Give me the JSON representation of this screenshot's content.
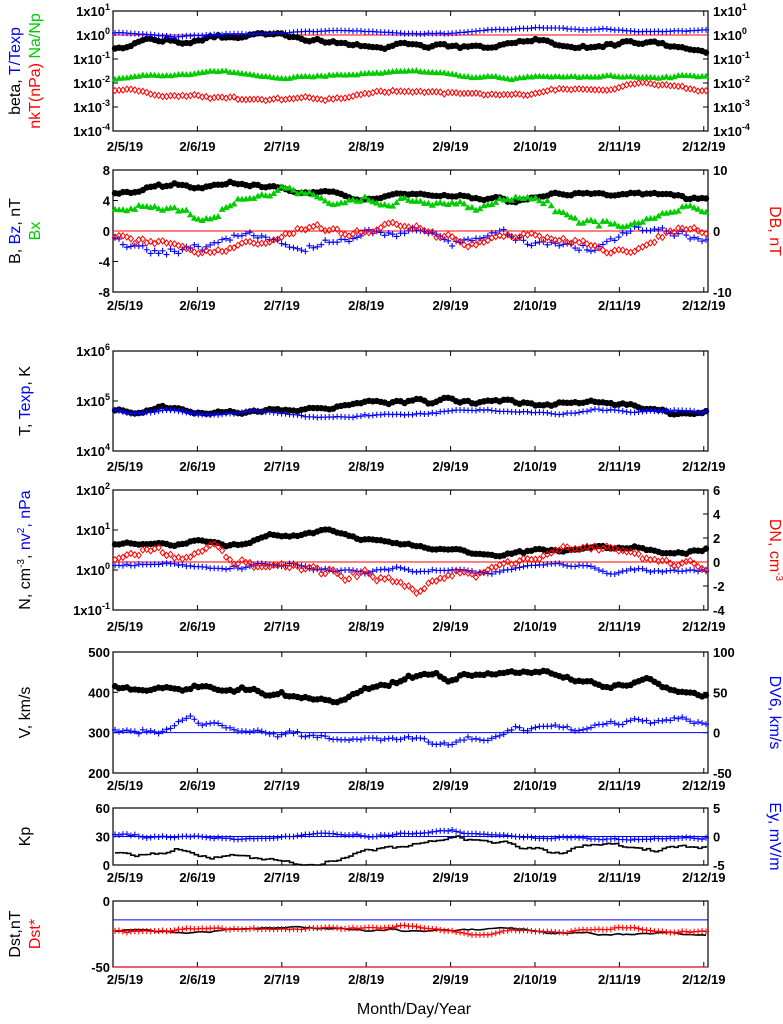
{
  "chart_data": [
    {
      "panel": 1,
      "type": "scatter",
      "yscale": "log",
      "ylim": [
        0.0001,
        10
      ],
      "ylabel_left": [
        {
          "text": "beta, ",
          "color": "#000000"
        },
        {
          "text": "T/Texp",
          "color": "#0000ff"
        }
      ],
      "ylabel_left2": [
        {
          "text": "nkT(nPa)",
          "color": "#ff0000"
        },
        {
          "text": " Na/Np",
          "color": "#00cc00"
        }
      ],
      "left_ticks": [
        "1x10^-4",
        "1x10^-3",
        "1x10^-2",
        "1x10^-1",
        "1x10^0",
        "1x10^1"
      ],
      "right_ticks": [
        "1x10^-4",
        "1x10^-3",
        "1x10^-2",
        "1x10^-1",
        "1x10^0",
        "1x10^1"
      ],
      "reference_line": {
        "y": 1,
        "color": "#ff0000"
      },
      "series": [
        {
          "name": "beta",
          "color": "#000000",
          "marker": "dot",
          "mean": 0.35,
          "spread": 0.35
        },
        {
          "name": "T/Texp",
          "color": "#0000ff",
          "marker": "plus",
          "mean": 1.2,
          "spread": 0.12
        },
        {
          "name": "nkT(nPa)",
          "color": "#ff0000",
          "marker": "diamond",
          "mean": 0.004,
          "spread": 0.25
        },
        {
          "name": "Na/Np",
          "color": "#00cc00",
          "marker": "triangle",
          "mean": 0.015,
          "spread": 0.15
        }
      ]
    },
    {
      "panel": 2,
      "type": "scatter",
      "ylim": [
        -8,
        8
      ],
      "ylim_right": [
        -10,
        10
      ],
      "ylabel_left": [
        {
          "text": "B, ",
          "color": "#000000"
        },
        {
          "text": "Bz",
          "color": "#0000ff"
        },
        {
          "text": ", nT",
          "color": "#000000"
        }
      ],
      "ylabel_left2": [
        {
          "text": "Bx",
          "color": "#00cc00"
        }
      ],
      "ylabel_right": [
        {
          "text": "DB, nT",
          "color": "#ff0000"
        }
      ],
      "left_ticks": [
        "-8",
        "-4",
        "0",
        "4",
        "8"
      ],
      "right_ticks": [
        "-10",
        "0",
        "10"
      ],
      "reference_line": {
        "y": 0,
        "color": "#ff0000"
      },
      "series": [
        {
          "name": "B",
          "color": "#000000",
          "marker": "dot"
        },
        {
          "name": "Bz",
          "color": "#0000ff",
          "marker": "plus"
        },
        {
          "name": "Bx",
          "color": "#00cc00",
          "marker": "triangle"
        },
        {
          "name": "DB",
          "color": "#ff0000",
          "marker": "diamond"
        }
      ]
    },
    {
      "panel": 3,
      "type": "scatter",
      "yscale": "log",
      "ylim": [
        10000,
        1000000
      ],
      "ylabel_left": [
        {
          "text": "T, ",
          "color": "#000000"
        },
        {
          "text": "Texp",
          "color": "#0000ff"
        },
        {
          "text": ", K",
          "color": "#000000"
        }
      ],
      "left_ticks": [
        "1x10^4",
        "1x10^5",
        "1x10^6"
      ],
      "series": [
        {
          "name": "T",
          "color": "#000000",
          "marker": "dot"
        },
        {
          "name": "Texp",
          "color": "#0000ff",
          "marker": "plus"
        }
      ]
    },
    {
      "panel": 4,
      "type": "scatter",
      "yscale": "log",
      "ylim": [
        0.1,
        100
      ],
      "ylim_right": [
        -4,
        6
      ],
      "ylabel_left": [
        {
          "text": "N, cm^-3, ",
          "color": "#000000"
        },
        {
          "text": "nv^2, nPa",
          "color": "#0000ff"
        }
      ],
      "ylabel_right": [
        {
          "text": "DN, cm^-3",
          "color": "#ff0000"
        }
      ],
      "left_ticks": [
        "1x10^-1",
        "1x10^0",
        "1x10^1",
        "1x10^2"
      ],
      "right_ticks": [
        "-4",
        "-2",
        "0",
        "2",
        "4",
        "6"
      ],
      "reference_line": {
        "y_right": 0,
        "color": "#ff0000"
      },
      "series": [
        {
          "name": "N",
          "color": "#000000",
          "marker": "dot"
        },
        {
          "name": "nv^2",
          "color": "#0000ff",
          "marker": "plus"
        },
        {
          "name": "DN",
          "color": "#ff0000",
          "marker": "diamond"
        }
      ]
    },
    {
      "panel": 5,
      "type": "scatter",
      "ylim": [
        200,
        500
      ],
      "ylim_right": [
        -50,
        100
      ],
      "ylabel_left": [
        {
          "text": "V, km/s",
          "color": "#000000"
        }
      ],
      "ylabel_right": [
        {
          "text": "DV6, km/s",
          "color": "#0000ff"
        }
      ],
      "left_ticks": [
        "200",
        "300",
        "400",
        "500"
      ],
      "right_ticks": [
        "-50",
        "0",
        "50",
        "100"
      ],
      "reference_line": {
        "y_right": 0,
        "color": "#0000ff"
      },
      "series": [
        {
          "name": "V",
          "color": "#000000",
          "marker": "dot"
        },
        {
          "name": "DV6",
          "color": "#0000ff",
          "marker": "plus"
        }
      ]
    },
    {
      "panel": 6,
      "type": "line",
      "ylim": [
        0,
        60
      ],
      "ylim_right": [
        -5,
        5
      ],
      "ylabel_left": [
        {
          "text": "Kp",
          "color": "#000000"
        }
      ],
      "ylabel_right": [
        {
          "text": "Ey, mV/m",
          "color": "#0000ff"
        }
      ],
      "left_ticks": [
        "0",
        "30",
        "60"
      ],
      "right_ticks": [
        "-5",
        "0",
        "5"
      ],
      "reference_line": {
        "y_right": 0,
        "color": "#0000ff"
      },
      "series": [
        {
          "name": "Kp",
          "color": "#000000",
          "marker": "step-line"
        },
        {
          "name": "Ey",
          "color": "#0000ff",
          "marker": "plus"
        }
      ]
    },
    {
      "panel": 7,
      "type": "line",
      "ylim": [
        -50,
        20
      ],
      "ylabel_left": [
        {
          "text": "Dst,nT",
          "color": "#000000"
        }
      ],
      "ylabel_left2": [
        {
          "text": "Dst*",
          "color": "#ff0000"
        }
      ],
      "left_ticks": [
        "-50",
        "0"
      ],
      "reference_lines": [
        {
          "y": 0,
          "color": "#0000ff"
        },
        {
          "y": -50,
          "color": "#ff0000"
        }
      ],
      "series": [
        {
          "name": "Dst",
          "color": "#000000",
          "marker": "line"
        },
        {
          "name": "Dst*",
          "color": "#ff0000",
          "marker": "plus"
        }
      ]
    }
  ],
  "x_axis": {
    "ticks": [
      "2/5/19",
      "2/6/19",
      "2/7/19",
      "2/8/19",
      "2/9/19",
      "2/10/19",
      "2/11/19",
      "2/12/19"
    ],
    "xlabel": "Month/Day/Year"
  }
}
